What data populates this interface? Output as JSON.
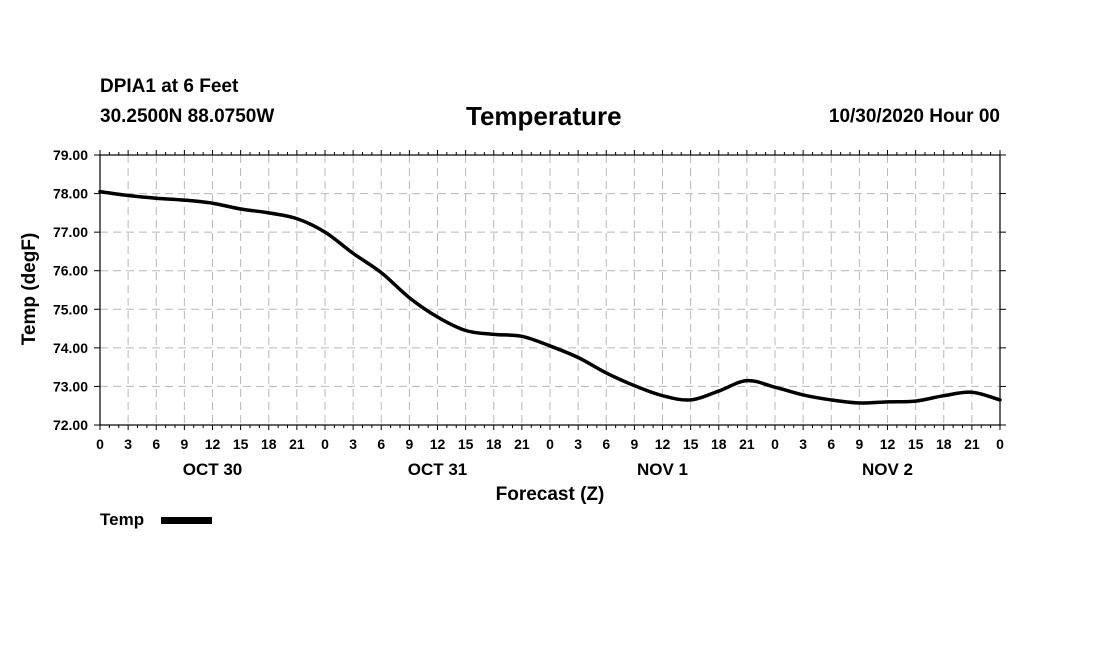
{
  "header": {
    "station": "DPIA1 at 6 Feet",
    "coordinates": "30.2500N 88.0750W",
    "title": "Temperature",
    "datetime": "10/30/2020 Hour 00"
  },
  "chart_data": {
    "type": "line",
    "title": "Temperature",
    "xlabel": "Forecast (Z)",
    "ylabel": "Temp (degF)",
    "xlim": [
      0,
      96
    ],
    "ylim": [
      72.0,
      79.0
    ],
    "y_ticks": [
      "72.00",
      "73.00",
      "74.00",
      "75.00",
      "76.00",
      "77.00",
      "78.00",
      "79.00"
    ],
    "x_tick_labels": [
      "0",
      "3",
      "6",
      "9",
      "12",
      "15",
      "18",
      "21",
      "0",
      "3",
      "6",
      "9",
      "12",
      "15",
      "18",
      "21",
      "0",
      "3",
      "6",
      "9",
      "12",
      "15",
      "18",
      "21",
      "0",
      "3",
      "6",
      "9",
      "12",
      "15",
      "18",
      "21",
      "0"
    ],
    "day_labels": [
      {
        "label": "OCT 30",
        "center_hour": 12
      },
      {
        "label": "OCT 31",
        "center_hour": 36
      },
      {
        "label": "NOV 1",
        "center_hour": 60
      },
      {
        "label": "NOV 2",
        "center_hour": 84
      }
    ],
    "grid": true,
    "legend": "bottom-left",
    "series": [
      {
        "name": "Temp",
        "color": "#000000",
        "x": [
          0,
          3,
          6,
          9,
          12,
          15,
          18,
          21,
          24,
          27,
          30,
          33,
          36,
          39,
          42,
          45,
          48,
          51,
          54,
          57,
          60,
          63,
          66,
          69,
          72,
          75,
          78,
          81,
          84,
          87,
          90,
          93,
          96
        ],
        "y": [
          78.05,
          77.95,
          77.88,
          77.83,
          77.75,
          77.6,
          77.5,
          77.35,
          77.0,
          76.45,
          75.95,
          75.3,
          74.8,
          74.45,
          74.35,
          74.3,
          74.05,
          73.75,
          73.35,
          73.02,
          72.76,
          72.65,
          72.88,
          73.15,
          72.98,
          72.78,
          72.65,
          72.57,
          72.6,
          72.62,
          72.76,
          72.85,
          72.65
        ]
      }
    ]
  }
}
